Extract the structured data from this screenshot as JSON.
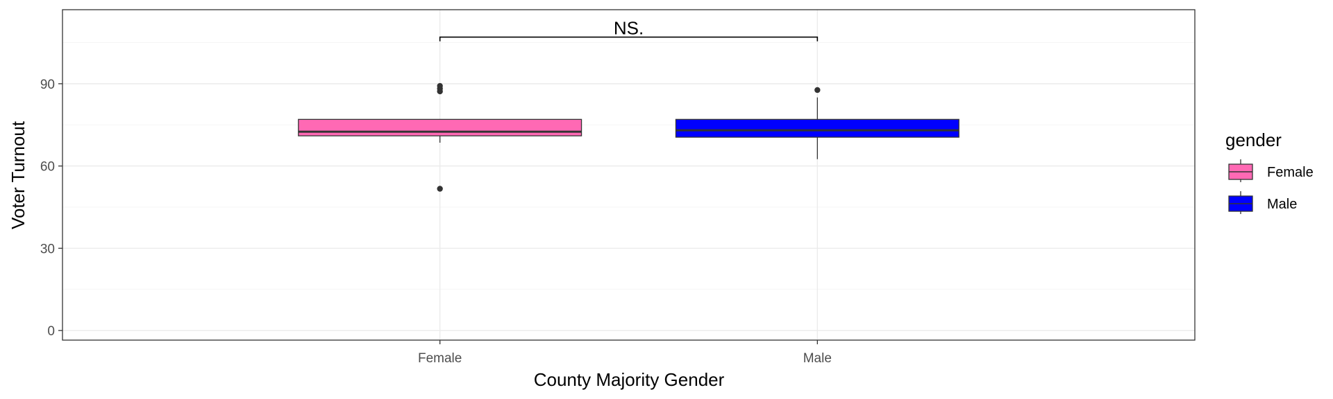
{
  "chart_data": {
    "type": "box",
    "xlabel": "County Majority Gender",
    "ylabel": "Voter Turnout",
    "categories": [
      "Female",
      "Male"
    ],
    "ylim": [
      -3.5,
      117
    ],
    "yticks": [
      0,
      30,
      60,
      90
    ],
    "grid": true,
    "boxes": [
      {
        "category": "Female",
        "fill": "#ff69b4",
        "whisker_low": 68.5,
        "q1": 71,
        "median": 72.5,
        "q3": 77,
        "whisker_high": 77,
        "outliers": [
          51.7,
          87.2,
          88.2,
          89.2
        ]
      },
      {
        "category": "Male",
        "fill": "#0000ff",
        "whisker_low": 62.5,
        "q1": 70.5,
        "median": 73,
        "q3": 77,
        "whisker_high": 85,
        "outliers": [
          87.7
        ]
      }
    ],
    "annotation": {
      "text": "NS.",
      "y": 107
    },
    "legend": {
      "title": "gender",
      "position": "right",
      "items": [
        {
          "label": "Female",
          "color": "#ff69b4"
        },
        {
          "label": "Male",
          "color": "#0000ff"
        }
      ]
    }
  }
}
